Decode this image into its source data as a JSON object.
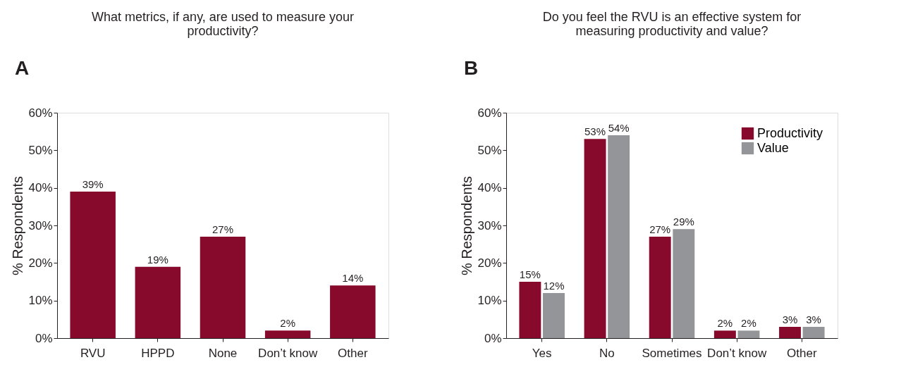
{
  "chart_data": [
    {
      "type": "bar",
      "title": "What metrics, if any, are used to measure your productivity?",
      "ylabel": "% Respondents",
      "annotations": [
        "A"
      ],
      "categories": [
        "RVU",
        "HPPD",
        "None",
        "Don’t know",
        "Other"
      ],
      "series": [
        {
          "color": "#870a2c",
          "values": [
            39,
            19,
            27,
            2,
            14
          ],
          "value_labels": [
            "39%",
            "19%",
            "27%",
            "2%",
            "14%"
          ]
        }
      ],
      "ylim": [
        0,
        60
      ],
      "yticks": [
        {
          "value": 0,
          "label": "0%"
        },
        {
          "value": 10,
          "label": "10%"
        },
        {
          "value": 20,
          "label": "20%"
        },
        {
          "value": 30,
          "label": "30%"
        },
        {
          "value": 40,
          "label": "40%"
        },
        {
          "value": 50,
          "label": "50%"
        },
        {
          "value": 60,
          "label": "60%"
        }
      ],
      "grid": false,
      "legend": false
    },
    {
      "type": "bar",
      "title": "Do you feel the RVU is an effective system for measuring productivity and value?",
      "ylabel": "% Respondents",
      "annotations": [
        "B"
      ],
      "categories": [
        "Yes",
        "No",
        "Sometimes",
        "Don’t know",
        "Other"
      ],
      "series": [
        {
          "name": "Productivity",
          "color": "#870a2c",
          "values": [
            15,
            53,
            27,
            2,
            3
          ],
          "value_labels": [
            "15%",
            "53%",
            "27%",
            "2%",
            "3%"
          ]
        },
        {
          "name": "Value",
          "color": "#939598",
          "values": [
            12,
            54,
            29,
            2,
            3
          ],
          "value_labels": [
            "12%",
            "54%",
            "29%",
            "2%",
            "3%"
          ]
        }
      ],
      "ylim": [
        0,
        60
      ],
      "yticks": [
        {
          "value": 0,
          "label": "0%"
        },
        {
          "value": 10,
          "label": "10%"
        },
        {
          "value": 20,
          "label": "20%"
        },
        {
          "value": 30,
          "label": "30%"
        },
        {
          "value": 40,
          "label": "40%"
        },
        {
          "value": 50,
          "label": "50%"
        },
        {
          "value": 60,
          "label": "60%"
        }
      ],
      "grid": false,
      "legend": "top right"
    }
  ]
}
